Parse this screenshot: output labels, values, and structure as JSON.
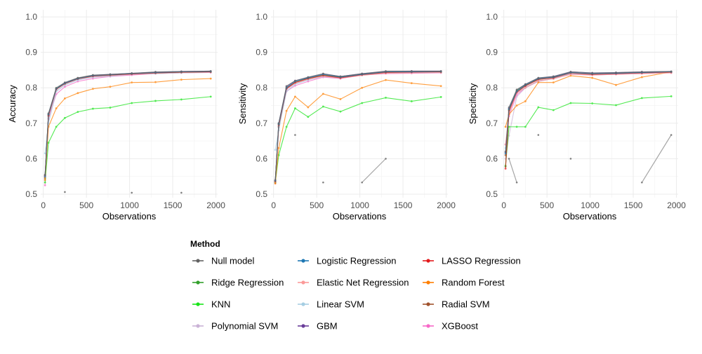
{
  "chart_data": {
    "type": "line",
    "xlabel": "Observations",
    "xticks": [
      0,
      500,
      1000,
      1500,
      2000
    ],
    "yticks": [
      0.5,
      0.6,
      0.7,
      0.8,
      0.9,
      1.0
    ],
    "ylim": [
      0.49,
      1.02
    ],
    "xlim": [
      -30,
      2020
    ],
    "grid": true,
    "legend_title": "Method",
    "legend_position": "bottom",
    "methods": [
      {
        "name": "Null model",
        "color": "#636363"
      },
      {
        "name": "Logistic Regression",
        "color": "#1f78b4"
      },
      {
        "name": "LASSO Regression",
        "color": "#e31a1c"
      },
      {
        "name": "Ridge Regression",
        "color": "#33a02c"
      },
      {
        "name": "Elastic Net Regression",
        "color": "#fb9a99"
      },
      {
        "name": "Random Forest",
        "color": "#ff7f00"
      },
      {
        "name": "KNN",
        "color": "#1ae41a"
      },
      {
        "name": "Linear SVM",
        "color": "#a6cee3"
      },
      {
        "name": "Radial SVM",
        "color": "#a0522d"
      },
      {
        "name": "Polynomial SVM",
        "color": "#cab2d6"
      },
      {
        "name": "GBM",
        "color": "#6a3d9a"
      },
      {
        "name": "XGBoost",
        "color": "#f768c8"
      }
    ],
    "x": [
      20,
      60,
      150,
      250,
      400,
      575,
      775,
      1025,
      1300,
      1600,
      1940
    ],
    "panels": [
      {
        "ylabel": "Accuracy",
        "series": [
          {
            "method": "Null model",
            "values": [
              0.555,
              0.728,
              0.8,
              0.815,
              0.828,
              0.836,
              0.838,
              0.841,
              0.845,
              0.846,
              0.847
            ]
          },
          {
            "method": "Logistic Regression",
            "values": [
              0.55,
              0.725,
              0.797,
              0.813,
              0.826,
              0.834,
              0.837,
              0.84,
              0.843,
              0.845,
              0.846
            ]
          },
          {
            "method": "LASSO Regression",
            "values": [
              0.552,
              0.722,
              0.796,
              0.812,
              0.825,
              0.833,
              0.836,
              0.839,
              0.842,
              0.844,
              0.845
            ]
          },
          {
            "method": "Ridge Regression",
            "values": [
              0.553,
              0.724,
              0.798,
              0.812,
              0.826,
              0.834,
              0.836,
              0.84,
              0.842,
              0.844,
              0.845
            ]
          },
          {
            "method": "Elastic Net Regression",
            "values": [
              0.55,
              0.72,
              0.795,
              0.811,
              0.825,
              0.832,
              0.835,
              0.838,
              0.841,
              0.843,
              0.844
            ]
          },
          {
            "method": "Random Forest",
            "values": [
              0.54,
              0.69,
              0.742,
              0.77,
              0.785,
              0.797,
              0.803,
              0.815,
              0.816,
              0.823,
              0.826
            ]
          },
          {
            "method": "KNN",
            "values": [
              0.533,
              0.645,
              0.69,
              0.715,
              0.732,
              0.741,
              0.744,
              0.757,
              0.763,
              0.767,
              0.775
            ]
          },
          {
            "method": "Linear SVM",
            "values": [
              0.615,
              0.7,
              0.79,
              0.808,
              0.822,
              0.83,
              0.833,
              0.838,
              0.84,
              0.842,
              0.844
            ]
          },
          {
            "method": "Radial SVM",
            "values": [
              0.545,
              0.72,
              0.795,
              0.812,
              0.827,
              0.834,
              0.837,
              0.84,
              0.843,
              0.845,
              0.846
            ]
          },
          {
            "method": "Polynomial SVM",
            "values": [
              0.54,
              0.715,
              0.79,
              0.808,
              0.822,
              0.83,
              0.834,
              0.838,
              0.841,
              0.843,
              0.844
            ]
          },
          {
            "method": "GBM",
            "values": [
              0.548,
              0.726,
              0.797,
              0.814,
              0.827,
              0.835,
              0.838,
              0.841,
              0.844,
              0.846,
              0.847
            ]
          },
          {
            "method": "XGBoost",
            "values": [
              0.525,
              0.712,
              0.782,
              0.803,
              0.818,
              0.826,
              0.832,
              0.836,
              0.84,
              0.842,
              0.843
            ]
          }
        ],
        "segments": [],
        "points": [
          [
            250,
            0.506
          ],
          [
            1025,
            0.504
          ],
          [
            1600,
            0.504
          ]
        ]
      },
      {
        "ylabel": "Sensitivity",
        "series": [
          {
            "method": "Null model",
            "values": [
              0.54,
              0.7,
              0.805,
              0.82,
              0.83,
              0.84,
              0.832,
              0.84,
              0.847,
              0.847,
              0.847
            ]
          },
          {
            "method": "Logistic Regression",
            "values": [
              0.538,
              0.698,
              0.8,
              0.818,
              0.828,
              0.838,
              0.83,
              0.838,
              0.845,
              0.845,
              0.846
            ]
          },
          {
            "method": "LASSO Regression",
            "values": [
              0.536,
              0.695,
              0.798,
              0.815,
              0.826,
              0.835,
              0.828,
              0.837,
              0.843,
              0.844,
              0.845
            ]
          },
          {
            "method": "Ridge Regression",
            "values": [
              0.537,
              0.697,
              0.8,
              0.816,
              0.827,
              0.836,
              0.83,
              0.838,
              0.844,
              0.845,
              0.845
            ]
          },
          {
            "method": "Elastic Net Regression",
            "values": [
              0.535,
              0.693,
              0.797,
              0.813,
              0.824,
              0.833,
              0.827,
              0.835,
              0.841,
              0.842,
              0.843
            ]
          },
          {
            "method": "Random Forest",
            "values": [
              0.53,
              0.63,
              0.735,
              0.775,
              0.745,
              0.783,
              0.768,
              0.8,
              0.822,
              0.813,
              0.805
            ]
          },
          {
            "method": "KNN",
            "values": [
              0.533,
              0.61,
              0.69,
              0.742,
              0.718,
              0.747,
              0.733,
              0.757,
              0.772,
              0.762,
              0.774
            ]
          },
          {
            "method": "Linear SVM",
            "values": [
              0.625,
              0.68,
              0.79,
              0.81,
              0.822,
              0.832,
              0.828,
              0.836,
              0.842,
              0.843,
              0.844
            ]
          },
          {
            "method": "Radial SVM",
            "values": [
              0.534,
              0.69,
              0.797,
              0.815,
              0.826,
              0.835,
              0.83,
              0.838,
              0.845,
              0.845,
              0.846
            ]
          },
          {
            "method": "Polynomial SVM",
            "values": [
              0.532,
              0.688,
              0.795,
              0.812,
              0.823,
              0.832,
              0.827,
              0.836,
              0.841,
              0.842,
              0.843
            ]
          },
          {
            "method": "GBM",
            "values": [
              0.538,
              0.7,
              0.803,
              0.82,
              0.829,
              0.839,
              0.832,
              0.84,
              0.846,
              0.847,
              0.847
            ]
          },
          {
            "method": "XGBoost",
            "values": [
              0.53,
              0.69,
              0.79,
              0.806,
              0.818,
              0.83,
              0.826,
              0.836,
              0.84,
              0.841,
              0.842
            ]
          }
        ],
        "segments": [
          [
            [
              1025,
              0.533
            ],
            [
              1300,
              0.6
            ]
          ]
        ],
        "points": [
          [
            250,
            0.667
          ],
          [
            575,
            0.533
          ]
        ]
      },
      {
        "ylabel": "Specificity",
        "series": [
          {
            "method": "Null model",
            "values": [
              0.62,
              0.745,
              0.795,
              0.81,
              0.828,
              0.832,
              0.845,
              0.842,
              0.843,
              0.845,
              0.846
            ]
          },
          {
            "method": "Logistic Regression",
            "values": [
              0.615,
              0.74,
              0.79,
              0.808,
              0.826,
              0.83,
              0.843,
              0.84,
              0.841,
              0.843,
              0.845
            ]
          },
          {
            "method": "LASSO Regression",
            "values": [
              0.572,
              0.735,
              0.788,
              0.805,
              0.824,
              0.828,
              0.842,
              0.838,
              0.84,
              0.842,
              0.844
            ]
          },
          {
            "method": "Ridge Regression",
            "values": [
              0.578,
              0.738,
              0.792,
              0.807,
              0.825,
              0.829,
              0.843,
              0.839,
              0.841,
              0.843,
              0.845
            ]
          },
          {
            "method": "Elastic Net Regression",
            "values": [
              0.64,
              0.73,
              0.785,
              0.8,
              0.82,
              0.825,
              0.838,
              0.836,
              0.838,
              0.84,
              0.842
            ]
          },
          {
            "method": "Random Forest",
            "values": [
              0.69,
              0.725,
              0.75,
              0.762,
              0.815,
              0.815,
              0.834,
              0.828,
              0.808,
              0.83,
              0.845
            ]
          },
          {
            "method": "KNN",
            "values": [
              0.58,
              0.69,
              0.69,
              0.69,
              0.745,
              0.737,
              0.757,
              0.756,
              0.751,
              0.771,
              0.776
            ]
          },
          {
            "method": "Linear SVM",
            "values": [
              0.63,
              0.735,
              0.785,
              0.802,
              0.82,
              0.826,
              0.84,
              0.837,
              0.839,
              0.841,
              0.843
            ]
          },
          {
            "method": "Radial SVM",
            "values": [
              0.61,
              0.73,
              0.787,
              0.806,
              0.823,
              0.829,
              0.842,
              0.839,
              0.841,
              0.843,
              0.845
            ]
          },
          {
            "method": "Polynomial SVM",
            "values": [
              0.6,
              0.665,
              0.775,
              0.8,
              0.818,
              0.826,
              0.84,
              0.837,
              0.839,
              0.841,
              0.843
            ]
          },
          {
            "method": "GBM",
            "values": [
              0.618,
              0.742,
              0.793,
              0.81,
              0.827,
              0.832,
              0.845,
              0.842,
              0.843,
              0.845,
              0.846
            ]
          },
          {
            "method": "XGBoost",
            "values": [
              0.64,
              0.72,
              0.78,
              0.8,
              0.818,
              0.826,
              0.838,
              0.836,
              0.838,
              0.84,
              0.842
            ]
          }
        ],
        "segments": [
          [
            [
              60,
              0.6
            ],
            [
              150,
              0.533
            ]
          ],
          [
            [
              1600,
              0.533
            ],
            [
              1940,
              0.667
            ]
          ]
        ],
        "points": [
          [
            400,
            0.667
          ],
          [
            775,
            0.6
          ]
        ]
      }
    ]
  }
}
